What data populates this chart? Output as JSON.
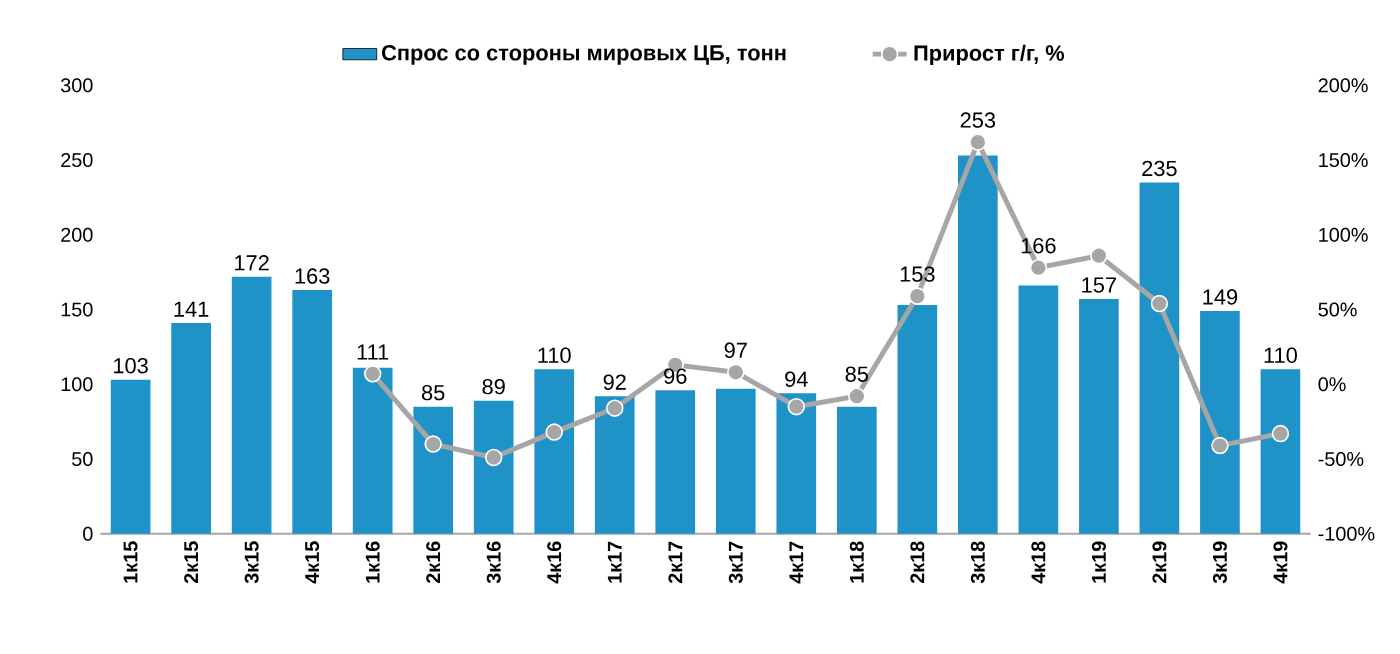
{
  "chart_data": {
    "type": "bar",
    "categories": [
      "1к15",
      "2к15",
      "3к15",
      "4к15",
      "1к16",
      "2к16",
      "3к16",
      "4к16",
      "1к17",
      "2к17",
      "3к17",
      "4к17",
      "1к18",
      "2к18",
      "3к18",
      "4к18",
      "1к19",
      "2к19",
      "3к19",
      "4к19"
    ],
    "series": [
      {
        "name": "Спрос со стороны мировых ЦБ, тонн",
        "type": "bar",
        "color": "#1f93c8",
        "values": [
          103,
          141,
          172,
          163,
          111,
          85,
          89,
          110,
          92,
          96,
          97,
          94,
          85,
          153,
          253,
          166,
          157,
          235,
          149,
          110
        ],
        "value_labels": [
          "103",
          "141",
          "172",
          "163",
          "111",
          "85",
          "89",
          "110",
          "92",
          "96",
          "97",
          "94",
          "85",
          "153",
          "253",
          "166",
          "157",
          "235",
          "149",
          "110"
        ]
      },
      {
        "name": "Прирост г/г, %",
        "type": "line",
        "axis": "y2",
        "color": "#a6a6a6",
        "marker": "circle",
        "values": [
          null,
          null,
          null,
          null,
          7,
          -40,
          -49,
          -32,
          -16,
          13,
          8,
          -15,
          -8,
          59,
          162,
          78,
          86,
          54,
          -41,
          -33
        ]
      }
    ],
    "ylim": [
      0,
      300
    ],
    "yticks": [
      0,
      50,
      100,
      150,
      200,
      250,
      300
    ],
    "y2lim": [
      -100,
      200
    ],
    "y2ticks": [
      {
        "value": -100,
        "label": "-100%"
      },
      {
        "value": -50,
        "label": "-50%"
      },
      {
        "value": 0,
        "label": "0%"
      },
      {
        "value": 50,
        "label": "50%"
      },
      {
        "value": 100,
        "label": "100%"
      },
      {
        "value": 150,
        "label": "150%"
      },
      {
        "value": 200,
        "label": "200%"
      }
    ],
    "grid": false,
    "legend": "top"
  }
}
